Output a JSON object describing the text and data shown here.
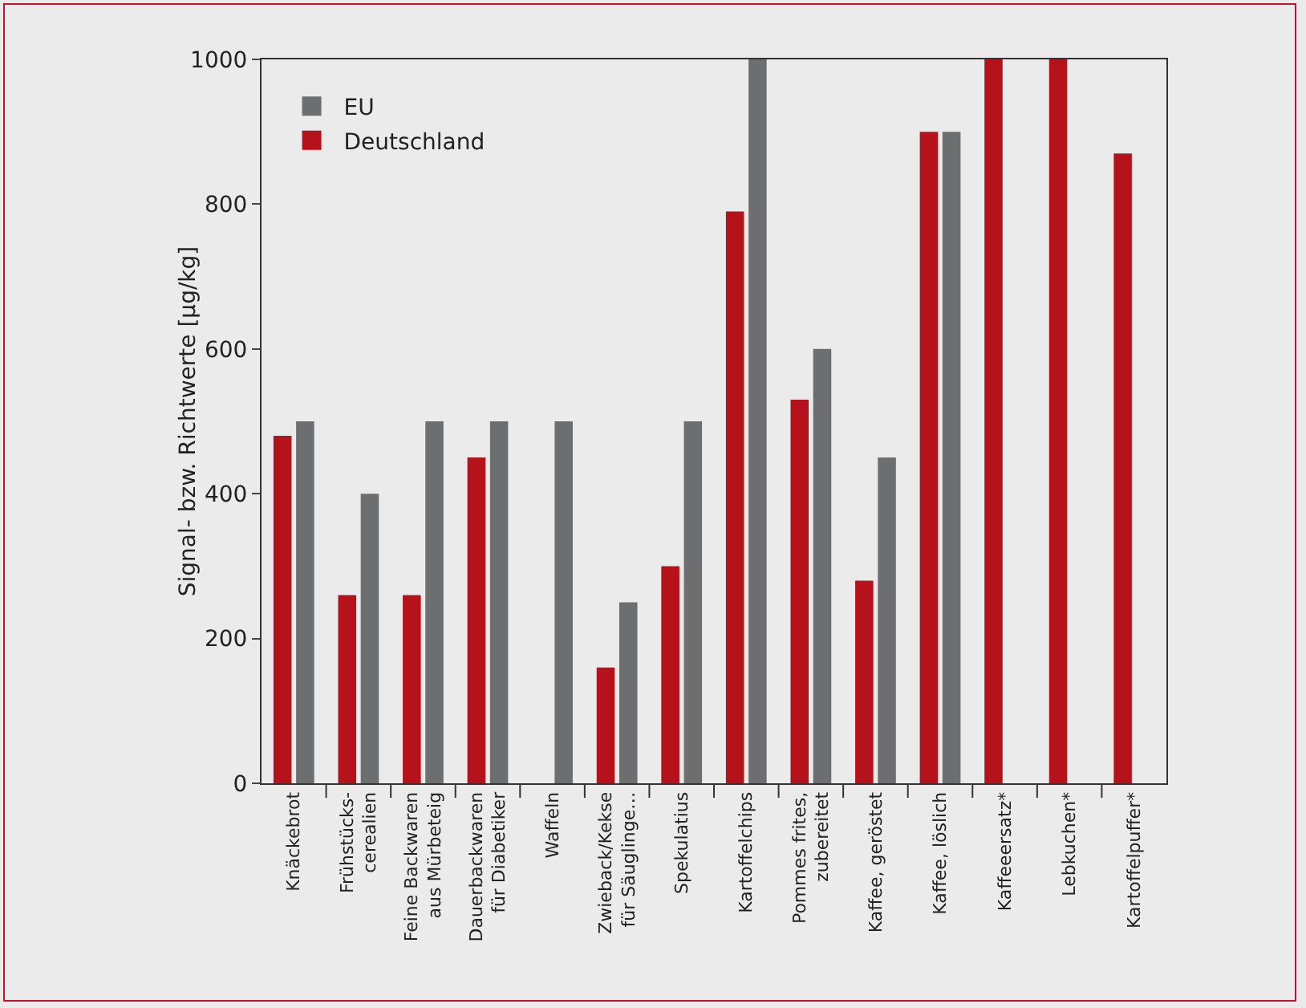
{
  "chart_data": {
    "type": "bar",
    "ylabel": "Signal- bzw. Richtwerte [µg/kg]",
    "categories": [
      "Knäckebrot",
      "Frühstücks-\ncerealien",
      "Feine Backwaren\naus Mürbeteig",
      "Dauerbackwaren\nfür Diabetiker",
      "Waffeln",
      "Zwieback/Kekse\nfür Säuglinge…",
      "Spekulatius",
      "Kartoffelchips",
      "Pommes frites,\nzubereitet",
      "Kaffee, geröstet",
      "Kaffee, löslich",
      "Kaffeeersatz*",
      "Lebkuchen*",
      "Kartoffelpuffer*"
    ],
    "series": [
      {
        "name": "Deutschland",
        "color": "#b5121b",
        "values": [
          480,
          260,
          260,
          450,
          null,
          160,
          300,
          790,
          530,
          280,
          900,
          1000,
          1000,
          870
        ]
      },
      {
        "name": "EU",
        "color": "#6d6e70",
        "values": [
          500,
          400,
          500,
          500,
          500,
          250,
          500,
          1000,
          600,
          450,
          900,
          null,
          null,
          null
        ]
      }
    ],
    "ylim": [
      0,
      1000
    ],
    "yticks": [
      0,
      200,
      400,
      600,
      800,
      1000
    ],
    "legend": "top left"
  }
}
